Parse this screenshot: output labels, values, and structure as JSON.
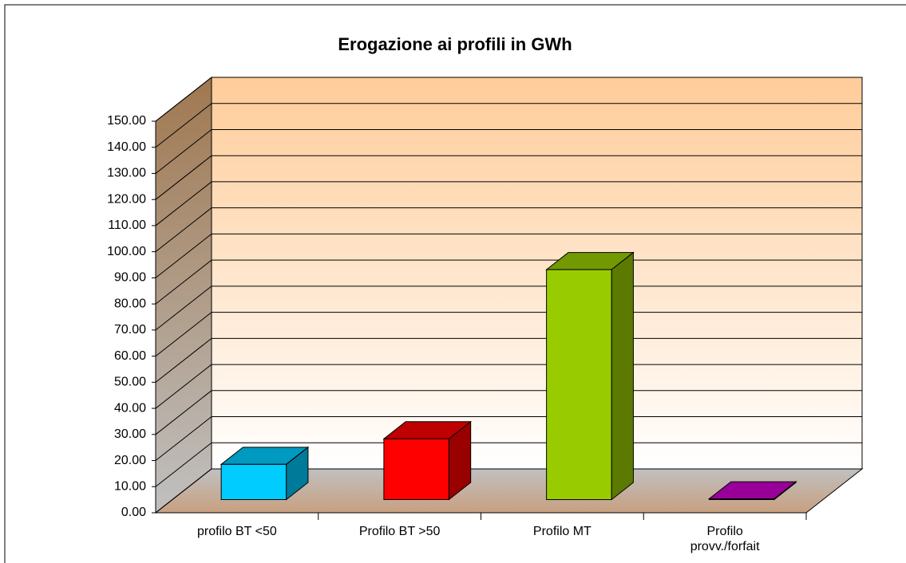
{
  "chart_data": {
    "type": "bar3d",
    "title": "Erogazione ai profili in GWh",
    "categories": [
      "profilo BT <50",
      "Profilo BT >50",
      "Profilo MT",
      "Profilo provv./forfait"
    ],
    "values": [
      13.5,
      23.3,
      88.1,
      0.3
    ],
    "colors": [
      "#00ccff",
      "#ff0000",
      "#99cc00",
      "#cc00cc"
    ],
    "ylim": [
      0,
      150
    ],
    "yticks": [
      {
        "value": 0,
        "label": "0.00"
      },
      {
        "value": 10,
        "label": "10.00"
      },
      {
        "value": 20,
        "label": "20.00"
      },
      {
        "value": 30,
        "label": "30.00"
      },
      {
        "value": 40,
        "label": "40.00"
      },
      {
        "value": 50,
        "label": "50.00"
      },
      {
        "value": 60,
        "label": "60.00"
      },
      {
        "value": 70,
        "label": "70.00"
      },
      {
        "value": 80,
        "label": "80.00"
      },
      {
        "value": 90,
        "label": "90.00"
      },
      {
        "value": 100,
        "label": "100.00"
      },
      {
        "value": 110,
        "label": "110.00"
      },
      {
        "value": 120,
        "label": "120.00"
      },
      {
        "value": 130,
        "label": "130.00"
      },
      {
        "value": 140,
        "label": "140.00"
      },
      {
        "value": 150,
        "label": "150.00"
      }
    ],
    "grid": true
  }
}
